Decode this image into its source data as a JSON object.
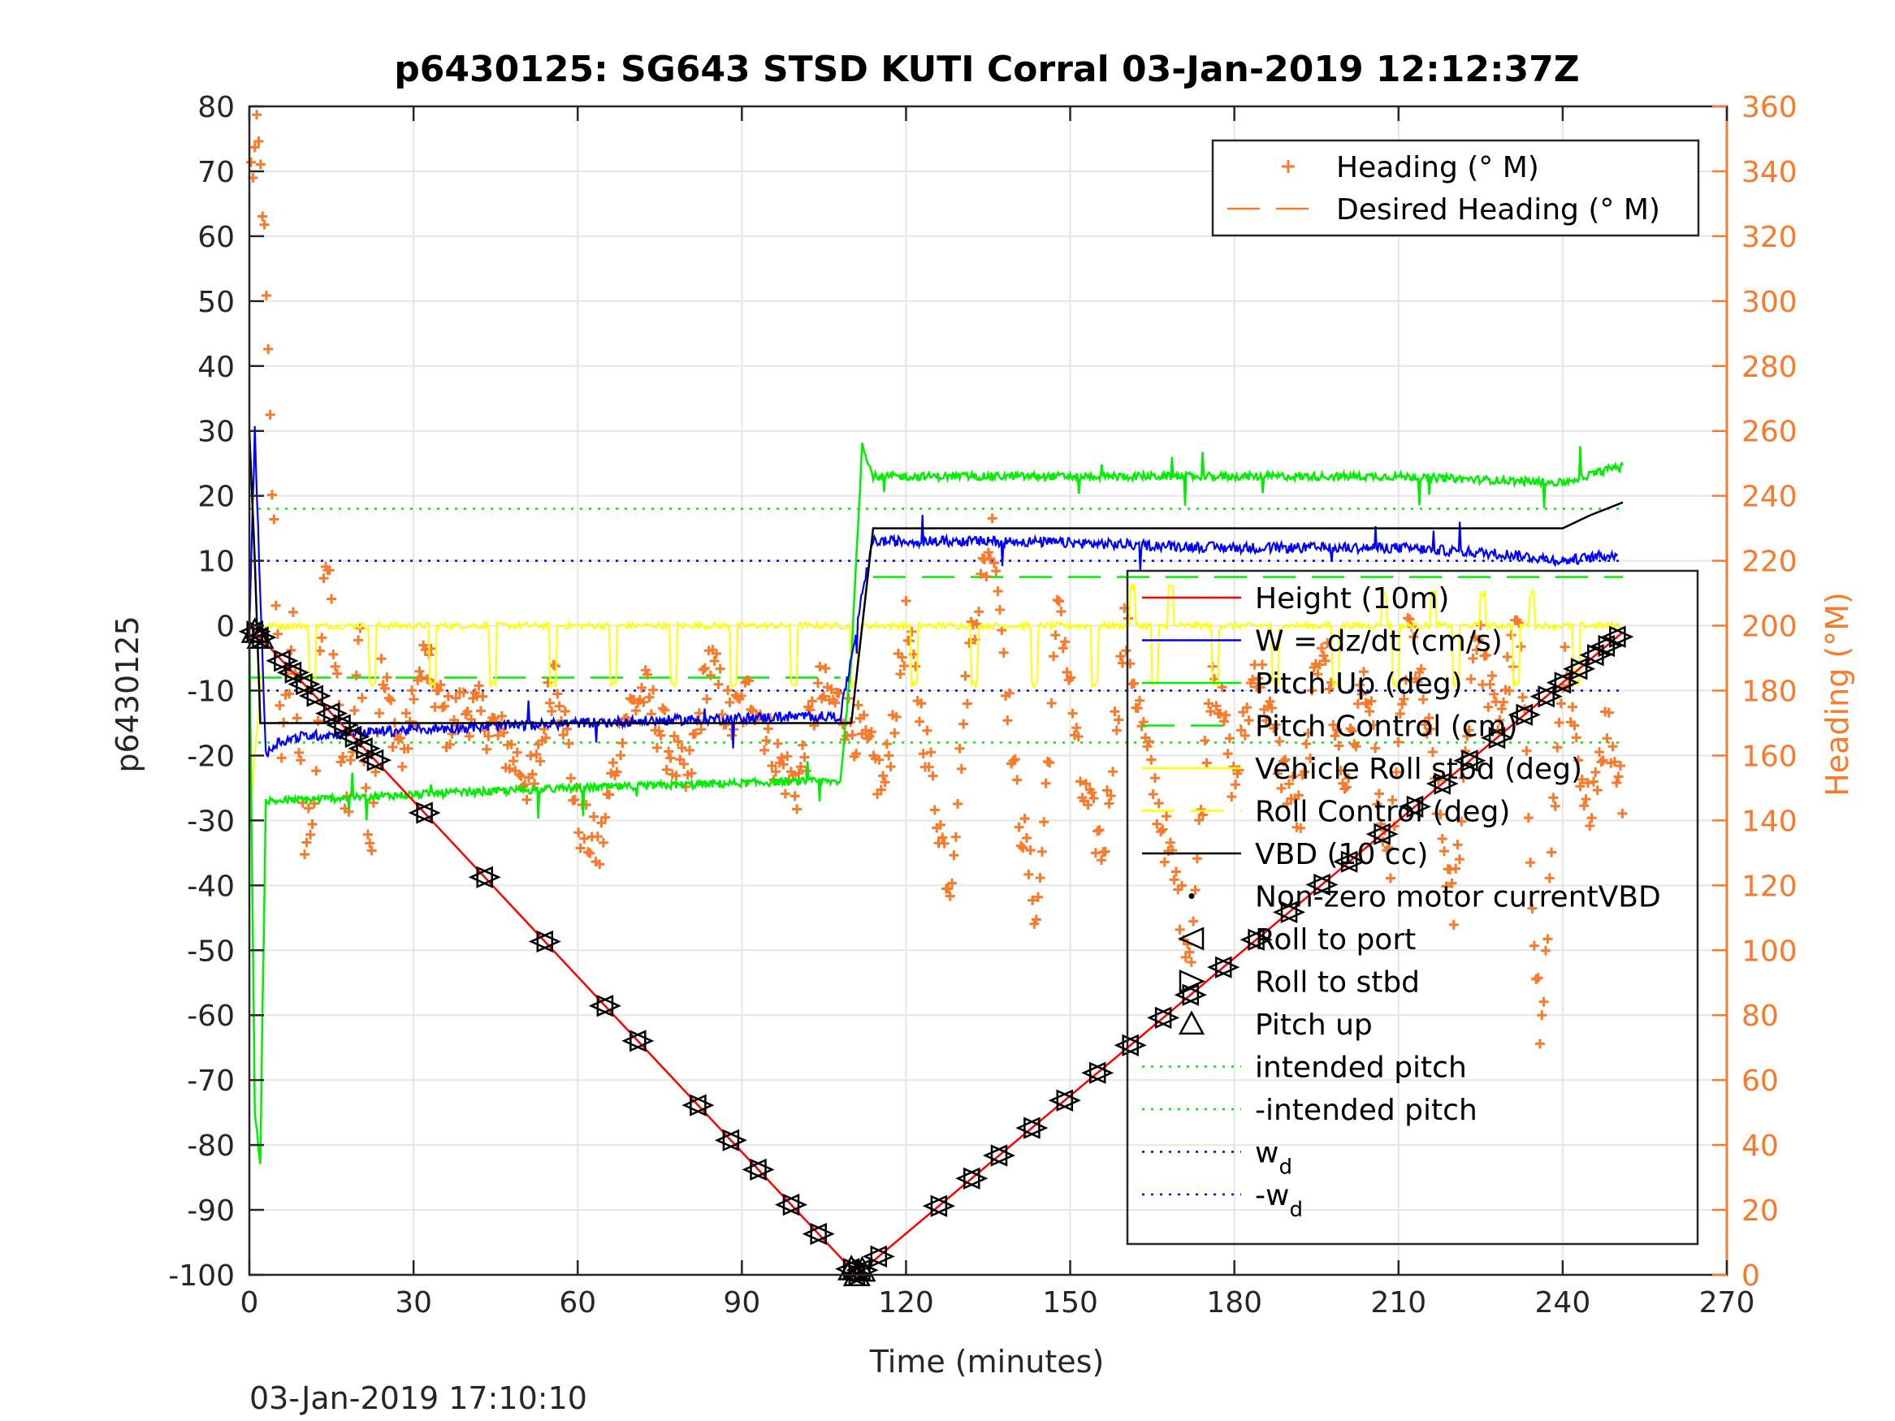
{
  "chart_data": {
    "type": "line",
    "title": "p6430125: SG643 STSD KUTI Corral 03-Jan-2019 12:12:37Z",
    "xlabel": "Time (minutes)",
    "ylabel": "p6430125",
    "y2label": "Heading (°M)",
    "footer": "03-Jan-2019 17:10:10",
    "xlim": [
      0,
      270
    ],
    "ylim": [
      -100,
      80
    ],
    "y2lim": [
      0,
      360
    ],
    "xticks": [
      "0",
      "30",
      "60",
      "90",
      "120",
      "150",
      "180",
      "210",
      "240",
      "270"
    ],
    "yticks": [
      "-100",
      "-90",
      "-80",
      "-70",
      "-60",
      "-50",
      "-40",
      "-30",
      "-20",
      "-10",
      "0",
      "10",
      "20",
      "30",
      "40",
      "50",
      "60",
      "70",
      "80"
    ],
    "y2ticks": [
      "0",
      "20",
      "40",
      "60",
      "80",
      "100",
      "120",
      "140",
      "160",
      "180",
      "200",
      "220",
      "240",
      "260",
      "280",
      "300",
      "320",
      "340",
      "360"
    ],
    "grid": true,
    "colors": {
      "height": "#ff0000",
      "w": "#0000ff",
      "pitch": "#00ee00",
      "roll": "#ffff00",
      "vbd": "#000000",
      "heading": "#f87a2a",
      "axis_right": "#f87a2a"
    },
    "legend_heading": {
      "placement": "top-right",
      "entries": [
        "Heading (° M)",
        "Desired Heading (° M)"
      ]
    },
    "legend_main": {
      "placement": "right",
      "entries": [
        {
          "label": "Height (10m)",
          "symbol": "line-red"
        },
        {
          "label": "W = dz/dt (cm/s)",
          "symbol": "line-blue"
        },
        {
          "label": "Pitch Up (deg)",
          "symbol": "line-green"
        },
        {
          "label": "Pitch Control (cm)",
          "symbol": "dash-green"
        },
        {
          "label": "Vehicle Roll stbd (deg)",
          "symbol": "line-yellow"
        },
        {
          "label": "Roll Control (deg)",
          "symbol": "dash-yellow"
        },
        {
          "label": "VBD (10 cc)",
          "symbol": "line-black"
        },
        {
          "label": "Non-zero motor currentVBD",
          "symbol": "dot-black"
        },
        {
          "label": "Roll to port",
          "symbol": "triangle-left"
        },
        {
          "label": "Roll to stbd",
          "symbol": "triangle-right"
        },
        {
          "label": "Pitch up",
          "symbol": "triangle-up"
        },
        {
          "label": "intended pitch",
          "symbol": "dotted-green"
        },
        {
          "label": "-intended pitch",
          "symbol": "dotted-green"
        },
        {
          "label": "w",
          "sub": "d",
          "symbol": "dotted-blue"
        },
        {
          "label": "-w",
          "sub": "d",
          "symbol": "dotted-blue"
        }
      ]
    },
    "series": [
      {
        "name": "Height (10m)",
        "x": [
          0,
          111,
          251
        ],
        "y": [
          0,
          -100,
          -1
        ]
      },
      {
        "name": "W = dz/dt (cm/s)",
        "x": [
          0,
          1,
          2,
          3,
          5,
          10,
          30,
          60,
          100,
          108,
          110,
          112,
          114,
          140,
          180,
          210,
          230,
          240,
          250
        ],
        "y": [
          0,
          30,
          5,
          -20,
          -18,
          -17,
          -16,
          -15,
          -14,
          -14,
          -5,
          5,
          13,
          13,
          12,
          12,
          11,
          10,
          11
        ]
      },
      {
        "name": "Pitch Up (deg)",
        "x": [
          0,
          1,
          2,
          3,
          5,
          30,
          60,
          100,
          108,
          110,
          112,
          114,
          140,
          180,
          210,
          240,
          248,
          251
        ],
        "y": [
          0,
          -75,
          -83,
          -27,
          -27,
          -26,
          -25,
          -24,
          -24,
          -5,
          28,
          23,
          23,
          23,
          23,
          22,
          24,
          25
        ]
      },
      {
        "name": "Pitch Control (cm)",
        "values_range": [
          -8,
          8
        ]
      },
      {
        "name": "Vehicle Roll stbd (deg)",
        "approx_level_deg": 0,
        "spikes_to_deg": -10
      },
      {
        "name": "Roll Control (deg)",
        "approx_level_deg": 0
      },
      {
        "name": "VBD (10 cc)",
        "x": [
          0,
          1,
          2,
          110,
          112,
          114,
          240,
          245,
          251
        ],
        "y": [
          30,
          10,
          -15,
          -15,
          0,
          15,
          15,
          17,
          19
        ]
      },
      {
        "name": "intended pitch",
        "y": 18
      },
      {
        "name": "-intended pitch",
        "y": -18
      },
      {
        "name": "w_d",
        "y": 10
      },
      {
        "name": "-w_d",
        "y": -10
      },
      {
        "name": "Heading (° M)",
        "axis": "right",
        "x": [
          0.5,
          1.5,
          2.5,
          4,
          6,
          8,
          10,
          12,
          14,
          16,
          18,
          20,
          22,
          24,
          28,
          32,
          36,
          40,
          44,
          48,
          52,
          56,
          60,
          64,
          68,
          72,
          76,
          80,
          84,
          88,
          92,
          96,
          100,
          104,
          108,
          112,
          116,
          120,
          124,
          128,
          132,
          136,
          140,
          144,
          148,
          152,
          156,
          160,
          164,
          168,
          172,
          176,
          180,
          184,
          188,
          192,
          196,
          200,
          204,
          208,
          212,
          216,
          220,
          224,
          228,
          232,
          236,
          240,
          244,
          248,
          251
        ],
        "y": [
          340,
          350,
          330,
          250,
          160,
          200,
          130,
          150,
          225,
          180,
          140,
          200,
          130,
          185,
          160,
          190,
          170,
          175,
          170,
          160,
          150,
          190,
          140,
          130,
          170,
          180,
          165,
          150,
          190,
          170,
          180,
          160,
          150,
          180,
          175,
          165,
          150,
          200,
          160,
          120,
          200,
          230,
          150,
          110,
          210,
          150,
          130,
          200,
          160,
          130,
          100,
          190,
          150,
          190,
          160,
          140,
          200,
          150,
          185,
          120,
          200,
          160,
          110,
          200,
          170,
          200,
          70,
          190,
          140,
          170,
          150
        ]
      }
    ]
  }
}
